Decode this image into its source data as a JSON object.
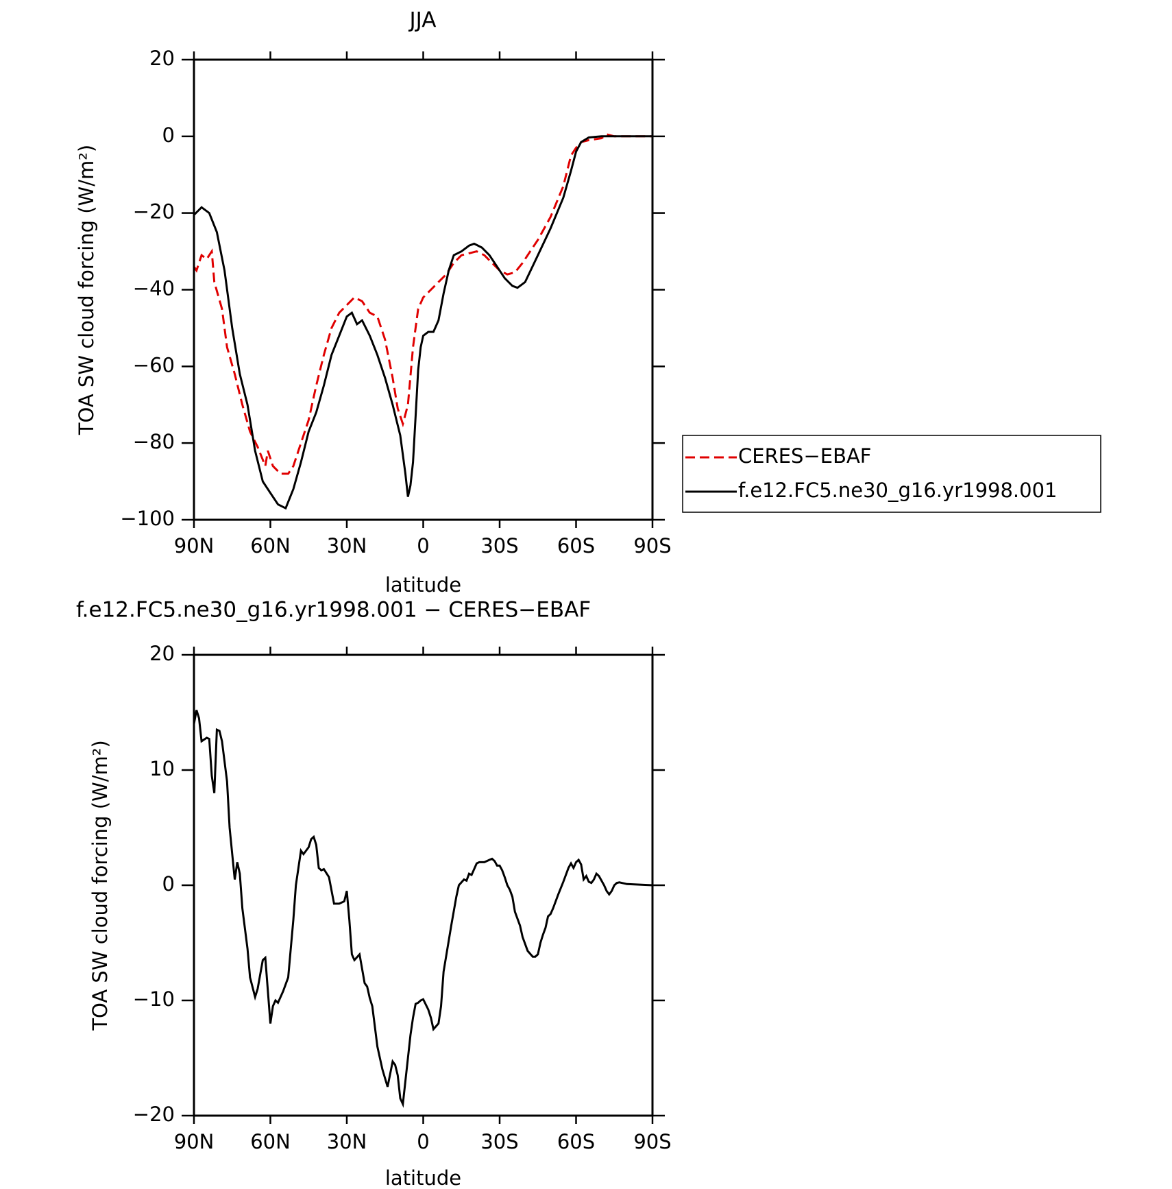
{
  "chart_data": [
    {
      "type": "line",
      "title": "JJA",
      "xlabel": "latitude",
      "ylabel": "TOA SW cloud forcing (W/m²)",
      "xlim": [
        90,
        -90
      ],
      "xticks": [
        {
          "value": 90,
          "label": "90N"
        },
        {
          "value": 60,
          "label": "60N"
        },
        {
          "value": 30,
          "label": "30N"
        },
        0,
        {
          "value": -30,
          "label": "30S"
        },
        {
          "value": -60,
          "label": "60S"
        },
        {
          "value": -90,
          "label": "90S"
        }
      ],
      "ylim": [
        -100,
        20
      ],
      "yticks": [
        {
          "value": -100,
          "label": "−100"
        },
        {
          "value": -80,
          "label": "−80"
        },
        {
          "value": -60,
          "label": "−60"
        },
        {
          "value": -40,
          "label": "−40"
        },
        {
          "value": -20,
          "label": "−20"
        },
        0,
        20
      ],
      "legend": "right",
      "series": [
        {
          "name": "CERES−EBAF",
          "color": "#e00000",
          "dash": true,
          "x": [
            90,
            89,
            87,
            85,
            83,
            82,
            79,
            77,
            74,
            71,
            68,
            65,
            62,
            61,
            59,
            56,
            53,
            51,
            48,
            45,
            42,
            39,
            36,
            33,
            30,
            27,
            24,
            21,
            18,
            15,
            12,
            10,
            8,
            6,
            4,
            2,
            0,
            -3,
            -6,
            -9,
            -12,
            -15,
            -18,
            -21,
            -24,
            -27,
            -30,
            -33,
            -36,
            -39,
            -42,
            -45,
            -50,
            -55,
            -58,
            -60,
            -62,
            -65,
            -70,
            -72,
            -75,
            -90
          ],
          "values": [
            -34,
            -35,
            -31,
            -32,
            -30,
            -38,
            -45,
            -55,
            -62,
            -70,
            -77,
            -81,
            -86,
            -82,
            -86,
            -88,
            -88,
            -86,
            -80,
            -74,
            -65,
            -57,
            -50,
            -46,
            -44,
            -42,
            -43,
            -46,
            -47,
            -53,
            -63,
            -71,
            -75,
            -70,
            -55,
            -45,
            -42,
            -40,
            -38,
            -36,
            -33,
            -31,
            -30.5,
            -30,
            -31,
            -33,
            -35,
            -36,
            -35.5,
            -33,
            -30,
            -27,
            -21,
            -13,
            -5,
            -3,
            -1.5,
            -1,
            -0.5,
            0.5,
            0,
            0
          ]
        },
        {
          "name": "f.e12.FC5.ne30_g16.yr1998.001",
          "color": "#000000",
          "dash": false,
          "x": [
            90,
            87,
            84,
            81,
            78,
            75,
            72,
            69,
            66,
            63,
            60,
            57,
            54,
            51,
            48,
            45,
            42,
            39,
            36,
            33,
            30,
            28,
            26,
            24,
            21,
            18,
            15,
            12,
            9,
            7,
            6,
            5,
            4,
            3,
            2,
            1,
            0,
            -2,
            -4,
            -6,
            -8,
            -10,
            -12,
            -15,
            -18,
            -20,
            -23,
            -26,
            -29,
            -32,
            -35,
            -37,
            -40,
            -45,
            -50,
            -55,
            -58,
            -60,
            -62,
            -65,
            -70,
            -90
          ],
          "values": [
            -20.5,
            -18.5,
            -20,
            -25,
            -35,
            -50,
            -62,
            -70,
            -82,
            -90,
            -93,
            -96,
            -97,
            -92,
            -85,
            -77,
            -72,
            -65,
            -57,
            -52,
            -47,
            -46,
            -49,
            -48,
            -52,
            -57,
            -63,
            -70,
            -78,
            -88,
            -94,
            -91,
            -85,
            -73,
            -61,
            -55,
            -52,
            -51,
            -51,
            -48,
            -41,
            -35,
            -31,
            -30,
            -28.5,
            -28,
            -29,
            -31,
            -34,
            -37,
            -39,
            -39.5,
            -38,
            -31,
            -24,
            -16,
            -9,
            -4,
            -1.5,
            -0.3,
            0,
            0
          ]
        }
      ]
    },
    {
      "type": "line",
      "title": "f.e12.FC5.ne30_g16.yr1998.001 − CERES−EBAF",
      "xlabel": "latitude",
      "ylabel": "TOA SW cloud forcing (W/m²)",
      "xlim": [
        90,
        -90
      ],
      "xticks": [
        {
          "value": 90,
          "label": "90N"
        },
        {
          "value": 60,
          "label": "60N"
        },
        {
          "value": 30,
          "label": "30N"
        },
        0,
        {
          "value": -30,
          "label": "30S"
        },
        {
          "value": -60,
          "label": "60S"
        },
        {
          "value": -90,
          "label": "90S"
        }
      ],
      "ylim": [
        -20,
        20
      ],
      "yticks": [
        {
          "value": -20,
          "label": "−20"
        },
        {
          "value": -10,
          "label": "−10"
        },
        0,
        10,
        20
      ],
      "series": [
        {
          "color": "#000000",
          "dash": false,
          "x": [
            90,
            89,
            88,
            87,
            85,
            84,
            83,
            82,
            81,
            80,
            79,
            77,
            76,
            74,
            73,
            72,
            71,
            69,
            68,
            66,
            65,
            63,
            62,
            60,
            59,
            58,
            57,
            55,
            53,
            51,
            50,
            48,
            47,
            45,
            44,
            43,
            42,
            41,
            40,
            39,
            37,
            35,
            33,
            31,
            30,
            29,
            28,
            27,
            25,
            23,
            22,
            21,
            20,
            18,
            16,
            14,
            12,
            11,
            10,
            9,
            8,
            7,
            6,
            5,
            4,
            3,
            2,
            1,
            0,
            -2,
            -3,
            -4,
            -6,
            -7,
            -8,
            -11,
            -13,
            -14,
            -16,
            -17,
            -18,
            -19,
            -20,
            -21,
            -22,
            -24,
            -26,
            -27,
            -28,
            -29,
            -30,
            -31,
            -32,
            -33,
            -34,
            -35,
            -36,
            -38,
            -39,
            -41,
            -43,
            -44,
            -45,
            -46,
            -47,
            -48,
            -49,
            -50,
            -51,
            -53,
            -55,
            -57,
            -58,
            -59,
            -60,
            -61,
            -62,
            -63,
            -64,
            -65,
            -66,
            -67,
            -68,
            -69,
            -71,
            -72,
            -73,
            -74,
            -75,
            -76,
            -77,
            -80,
            -90
          ],
          "values": [
            14,
            15.2,
            14.5,
            12.5,
            12.8,
            12.7,
            9.5,
            8,
            13.5,
            13.4,
            12.5,
            9,
            5,
            0.5,
            2,
            1,
            -2,
            -5.5,
            -8,
            -9.7,
            -9,
            -6.5,
            -6.3,
            -12,
            -10.5,
            -10,
            -10.2,
            -9.2,
            -8,
            -3,
            0,
            3,
            2.7,
            3.3,
            4,
            4.2,
            3.5,
            1.5,
            1.3,
            1.4,
            0.7,
            -1.6,
            -1.6,
            -1.4,
            -0.5,
            -3,
            -6,
            -6.5,
            -6,
            -8.5,
            -8.8,
            -9.8,
            -10.5,
            -14,
            -16,
            -17.5,
            -15.3,
            -15.6,
            -16.5,
            -18.5,
            -19,
            -17,
            -15,
            -13,
            -11.5,
            -10.3,
            -10.2,
            -10,
            -9.9,
            -10.8,
            -11.5,
            -12.5,
            -12,
            -10.5,
            -7.5,
            -3.5,
            -1,
            0,
            0.5,
            0.4,
            1,
            0.9,
            1.4,
            1.9,
            2,
            2,
            2.2,
            2.3,
            2.1,
            1.7,
            1.7,
            1.3,
            0.7,
            0,
            -0.4,
            -1,
            -2.3,
            -3.5,
            -4.5,
            -5.7,
            -6.2,
            -6.2,
            -6,
            -5,
            -4.3,
            -3.7,
            -2.7,
            -2.5,
            -2,
            -0.8,
            0.3,
            1.5,
            1.9,
            1.5,
            2,
            2.2,
            1.8,
            0.5,
            0.8,
            0.3,
            0.2,
            0.5,
            1,
            0.8,
            0,
            -0.5,
            -0.8,
            -0.5,
            0,
            0.2,
            0.25,
            0.1,
            0
          ]
        }
      ]
    }
  ]
}
